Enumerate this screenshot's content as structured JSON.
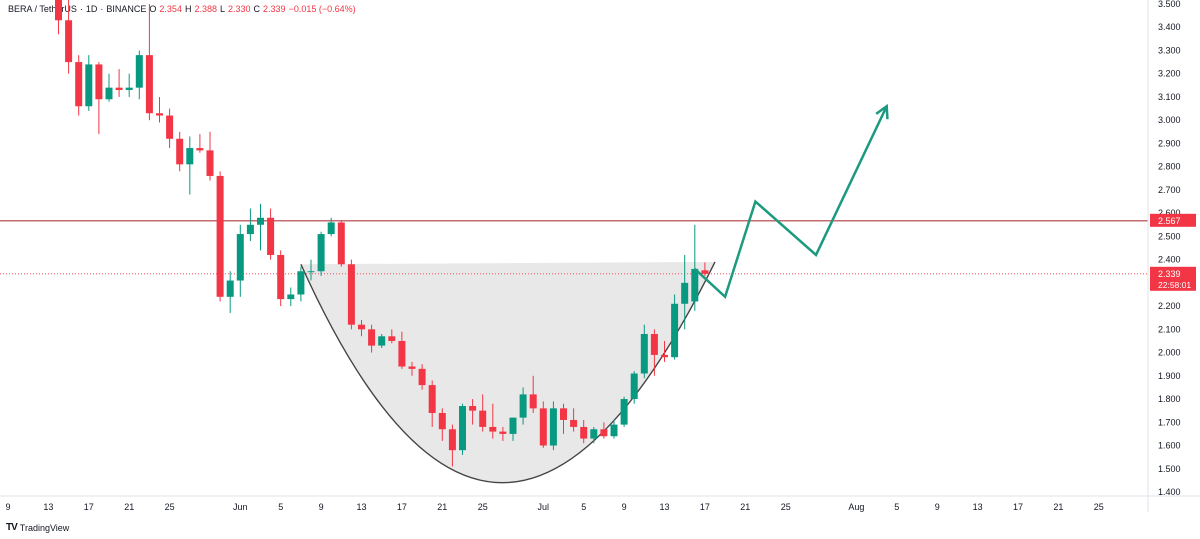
{
  "header": {
    "symbol": "BERA / TetherUS",
    "interval": "1D",
    "exchange": "BINANCE",
    "open_label": "O",
    "open": "2.354",
    "high_label": "H",
    "high": "2.388",
    "low_label": "L",
    "low": "2.330",
    "close_label": "C",
    "close": "2.339",
    "change": "−0.015 (−0.64%)"
  },
  "branding": {
    "name": "TradingView",
    "logo_icon": "tradingview-logo-icon"
  },
  "colors": {
    "up": "#089981",
    "down": "#f23645",
    "resistance_line": "#b2383f",
    "arrow": "#1b9a7f",
    "cup_fill": "#e6e6e6",
    "cup_curve": "#444444",
    "axis_text": "#131722"
  },
  "chart_data": {
    "type": "candlestick",
    "title": "",
    "xlabel": "",
    "ylabel": "",
    "ylim": [
      1.4,
      3.5
    ],
    "y_ticks": [
      "1.400",
      "1.500",
      "1.600",
      "1.700",
      "1.800",
      "1.900",
      "2.000",
      "2.100",
      "2.200",
      "2.300",
      "2.400",
      "2.500",
      "2.600",
      "2.700",
      "2.800",
      "2.900",
      "3.000",
      "3.100",
      "3.200",
      "3.300",
      "3.400",
      "3.500"
    ],
    "x_tick_labels": [
      {
        "label": "9",
        "date": "2025-05-09"
      },
      {
        "label": "13",
        "date": "2025-05-13"
      },
      {
        "label": "17",
        "date": "2025-05-17"
      },
      {
        "label": "21",
        "date": "2025-05-21"
      },
      {
        "label": "25",
        "date": "2025-05-25"
      },
      {
        "label": "Jun",
        "date": "2025-06-01"
      },
      {
        "label": "5",
        "date": "2025-06-05"
      },
      {
        "label": "9",
        "date": "2025-06-09"
      },
      {
        "label": "13",
        "date": "2025-06-13"
      },
      {
        "label": "17",
        "date": "2025-06-17"
      },
      {
        "label": "21",
        "date": "2025-06-21"
      },
      {
        "label": "25",
        "date": "2025-06-25"
      },
      {
        "label": "Jul",
        "date": "2025-07-01"
      },
      {
        "label": "5",
        "date": "2025-07-05"
      },
      {
        "label": "9",
        "date": "2025-07-09"
      },
      {
        "label": "13",
        "date": "2025-07-13"
      },
      {
        "label": "17",
        "date": "2025-07-17"
      },
      {
        "label": "21",
        "date": "2025-07-21"
      },
      {
        "label": "25",
        "date": "2025-07-25"
      },
      {
        "label": "Aug",
        "date": "2025-08-01"
      },
      {
        "label": "5",
        "date": "2025-08-05"
      },
      {
        "label": "9",
        "date": "2025-08-09"
      },
      {
        "label": "13",
        "date": "2025-08-13"
      },
      {
        "label": "17",
        "date": "2025-08-17"
      },
      {
        "label": "21",
        "date": "2025-08-21"
      },
      {
        "label": "25",
        "date": "2025-08-25"
      }
    ],
    "candles": [
      {
        "date": "2025-05-14",
        "o": 3.55,
        "h": 3.6,
        "l": 3.37,
        "c": 3.43
      },
      {
        "date": "2025-05-15",
        "o": 3.43,
        "h": 3.55,
        "l": 3.2,
        "c": 3.25
      },
      {
        "date": "2025-05-16",
        "o": 3.25,
        "h": 3.28,
        "l": 3.02,
        "c": 3.06
      },
      {
        "date": "2025-05-17",
        "o": 3.06,
        "h": 3.28,
        "l": 3.04,
        "c": 3.24
      },
      {
        "date": "2025-05-18",
        "o": 3.24,
        "h": 3.25,
        "l": 2.94,
        "c": 3.09
      },
      {
        "date": "2025-05-19",
        "o": 3.09,
        "h": 3.2,
        "l": 3.08,
        "c": 3.14
      },
      {
        "date": "2025-05-20",
        "o": 3.14,
        "h": 3.22,
        "l": 3.1,
        "c": 3.13
      },
      {
        "date": "2025-05-21",
        "o": 3.13,
        "h": 3.2,
        "l": 3.1,
        "c": 3.14
      },
      {
        "date": "2025-05-22",
        "o": 3.14,
        "h": 3.3,
        "l": 3.09,
        "c": 3.28
      },
      {
        "date": "2025-05-23",
        "o": 3.28,
        "h": 3.5,
        "l": 3.0,
        "c": 3.03
      },
      {
        "date": "2025-05-24",
        "o": 3.03,
        "h": 3.1,
        "l": 2.99,
        "c": 3.02
      },
      {
        "date": "2025-05-25",
        "o": 3.02,
        "h": 3.05,
        "l": 2.88,
        "c": 2.92
      },
      {
        "date": "2025-05-26",
        "o": 2.92,
        "h": 2.95,
        "l": 2.78,
        "c": 2.81
      },
      {
        "date": "2025-05-27",
        "o": 2.81,
        "h": 2.93,
        "l": 2.68,
        "c": 2.88
      },
      {
        "date": "2025-05-28",
        "o": 2.88,
        "h": 2.94,
        "l": 2.86,
        "c": 2.87
      },
      {
        "date": "2025-05-29",
        "o": 2.87,
        "h": 2.95,
        "l": 2.74,
        "c": 2.76
      },
      {
        "date": "2025-05-30",
        "o": 2.76,
        "h": 2.78,
        "l": 2.22,
        "c": 2.24
      },
      {
        "date": "2025-05-31",
        "o": 2.24,
        "h": 2.35,
        "l": 2.17,
        "c": 2.31
      },
      {
        "date": "2025-06-01",
        "o": 2.31,
        "h": 2.55,
        "l": 2.24,
        "c": 2.51
      },
      {
        "date": "2025-06-02",
        "o": 2.51,
        "h": 2.62,
        "l": 2.48,
        "c": 2.55
      },
      {
        "date": "2025-06-03",
        "o": 2.55,
        "h": 2.64,
        "l": 2.44,
        "c": 2.58
      },
      {
        "date": "2025-06-04",
        "o": 2.58,
        "h": 2.62,
        "l": 2.4,
        "c": 2.42
      },
      {
        "date": "2025-06-05",
        "o": 2.42,
        "h": 2.44,
        "l": 2.2,
        "c": 2.23
      },
      {
        "date": "2025-06-06",
        "o": 2.23,
        "h": 2.28,
        "l": 2.2,
        "c": 2.25
      },
      {
        "date": "2025-06-07",
        "o": 2.25,
        "h": 2.37,
        "l": 2.22,
        "c": 2.35
      },
      {
        "date": "2025-06-08",
        "o": 2.35,
        "h": 2.4,
        "l": 2.31,
        "c": 2.35
      },
      {
        "date": "2025-06-09",
        "o": 2.35,
        "h": 2.52,
        "l": 2.33,
        "c": 2.51
      },
      {
        "date": "2025-06-10",
        "o": 2.51,
        "h": 2.58,
        "l": 2.5,
        "c": 2.56
      },
      {
        "date": "2025-06-11",
        "o": 2.56,
        "h": 2.57,
        "l": 2.37,
        "c": 2.38
      },
      {
        "date": "2025-06-12",
        "o": 2.38,
        "h": 2.4,
        "l": 2.1,
        "c": 2.12
      },
      {
        "date": "2025-06-13",
        "o": 2.12,
        "h": 2.14,
        "l": 2.07,
        "c": 2.1
      },
      {
        "date": "2025-06-14",
        "o": 2.1,
        "h": 2.12,
        "l": 2.0,
        "c": 2.03
      },
      {
        "date": "2025-06-15",
        "o": 2.03,
        "h": 2.08,
        "l": 2.02,
        "c": 2.07
      },
      {
        "date": "2025-06-16",
        "o": 2.07,
        "h": 2.1,
        "l": 2.04,
        "c": 2.05
      },
      {
        "date": "2025-06-17",
        "o": 2.05,
        "h": 2.09,
        "l": 1.93,
        "c": 1.94
      },
      {
        "date": "2025-06-18",
        "o": 1.94,
        "h": 1.96,
        "l": 1.9,
        "c": 1.93
      },
      {
        "date": "2025-06-19",
        "o": 1.93,
        "h": 1.95,
        "l": 1.84,
        "c": 1.86
      },
      {
        "date": "2025-06-20",
        "o": 1.86,
        "h": 1.88,
        "l": 1.68,
        "c": 1.74
      },
      {
        "date": "2025-06-21",
        "o": 1.74,
        "h": 1.76,
        "l": 1.62,
        "c": 1.67
      },
      {
        "date": "2025-06-22",
        "o": 1.67,
        "h": 1.69,
        "l": 1.51,
        "c": 1.58
      },
      {
        "date": "2025-06-23",
        "o": 1.58,
        "h": 1.78,
        "l": 1.56,
        "c": 1.77
      },
      {
        "date": "2025-06-24",
        "o": 1.77,
        "h": 1.8,
        "l": 1.69,
        "c": 1.75
      },
      {
        "date": "2025-06-25",
        "o": 1.75,
        "h": 1.82,
        "l": 1.66,
        "c": 1.68
      },
      {
        "date": "2025-06-26",
        "o": 1.68,
        "h": 1.78,
        "l": 1.63,
        "c": 1.66
      },
      {
        "date": "2025-06-27",
        "o": 1.66,
        "h": 1.68,
        "l": 1.62,
        "c": 1.65
      },
      {
        "date": "2025-06-28",
        "o": 1.65,
        "h": 1.72,
        "l": 1.62,
        "c": 1.72
      },
      {
        "date": "2025-06-29",
        "o": 1.72,
        "h": 1.85,
        "l": 1.69,
        "c": 1.82
      },
      {
        "date": "2025-06-30",
        "o": 1.82,
        "h": 1.9,
        "l": 1.74,
        "c": 1.76
      },
      {
        "date": "2025-07-01",
        "o": 1.76,
        "h": 1.79,
        "l": 1.59,
        "c": 1.6
      },
      {
        "date": "2025-07-02",
        "o": 1.6,
        "h": 1.79,
        "l": 1.58,
        "c": 1.76
      },
      {
        "date": "2025-07-03",
        "o": 1.76,
        "h": 1.78,
        "l": 1.65,
        "c": 1.71
      },
      {
        "date": "2025-07-04",
        "o": 1.71,
        "h": 1.76,
        "l": 1.66,
        "c": 1.68
      },
      {
        "date": "2025-07-05",
        "o": 1.68,
        "h": 1.71,
        "l": 1.61,
        "c": 1.63
      },
      {
        "date": "2025-07-06",
        "o": 1.63,
        "h": 1.68,
        "l": 1.61,
        "c": 1.67
      },
      {
        "date": "2025-07-07",
        "o": 1.67,
        "h": 1.7,
        "l": 1.63,
        "c": 1.64
      },
      {
        "date": "2025-07-08",
        "o": 1.64,
        "h": 1.71,
        "l": 1.63,
        "c": 1.69
      },
      {
        "date": "2025-07-09",
        "o": 1.69,
        "h": 1.81,
        "l": 1.68,
        "c": 1.8
      },
      {
        "date": "2025-07-10",
        "o": 1.8,
        "h": 1.92,
        "l": 1.78,
        "c": 1.91
      },
      {
        "date": "2025-07-11",
        "o": 1.91,
        "h": 2.12,
        "l": 1.89,
        "c": 2.08
      },
      {
        "date": "2025-07-12",
        "o": 2.08,
        "h": 2.1,
        "l": 1.9,
        "c": 1.99
      },
      {
        "date": "2025-07-13",
        "o": 1.99,
        "h": 2.05,
        "l": 1.96,
        "c": 1.98
      },
      {
        "date": "2025-07-14",
        "o": 1.98,
        "h": 2.25,
        "l": 1.97,
        "c": 2.21
      },
      {
        "date": "2025-07-15",
        "o": 2.21,
        "h": 2.42,
        "l": 2.1,
        "c": 2.3
      },
      {
        "date": "2025-07-16",
        "o": 2.22,
        "h": 2.55,
        "l": 2.18,
        "c": 2.36
      },
      {
        "date": "2025-07-17",
        "o": 2.354,
        "h": 2.388,
        "l": 2.33,
        "c": 2.339
      }
    ],
    "levels": [
      {
        "name": "resistance",
        "value": 2.567,
        "label": "2.567"
      },
      {
        "name": "last-price",
        "value": 2.339,
        "label": "2.339",
        "countdown": "22:58:01"
      }
    ],
    "annotations": {
      "cup": {
        "rim": {
          "start": {
            "date": "2025-06-07",
            "price": 2.38
          },
          "end": {
            "date": "2025-07-18",
            "price": 2.39
          }
        },
        "bottom": {
          "date": "2025-06-27",
          "price": 1.44
        }
      },
      "projection_arrow": [
        {
          "date": "2025-07-16",
          "price": 2.36
        },
        {
          "date": "2025-07-19",
          "price": 2.24
        },
        {
          "date": "2025-07-22",
          "price": 2.65
        },
        {
          "date": "2025-07-28",
          "price": 2.42
        },
        {
          "date": "2025-08-04",
          "price": 3.06
        }
      ]
    }
  }
}
